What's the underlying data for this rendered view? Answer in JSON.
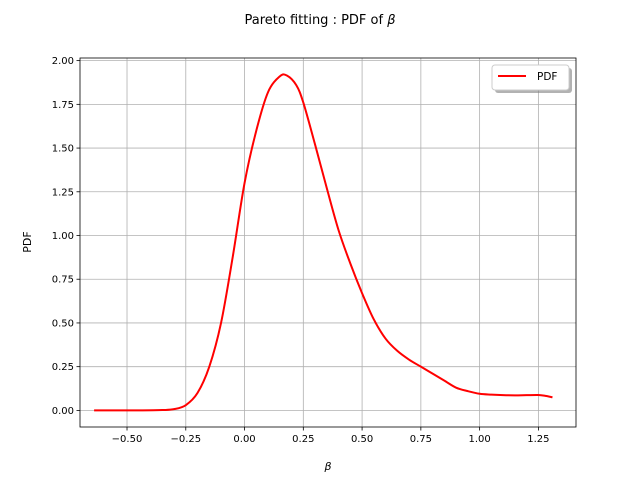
{
  "chart_data": {
    "type": "line",
    "title_prefix": "Pareto fitting : PDF of ",
    "title_symbol": "β",
    "xlabel": "β",
    "ylabel": "PDF",
    "xlim": [
      -0.7,
      1.41
    ],
    "ylim": [
      -0.095,
      2.015
    ],
    "xticks": [
      -0.5,
      -0.25,
      0.0,
      0.25,
      0.5,
      0.75,
      1.0,
      1.25
    ],
    "xtick_labels": [
      "−0.50",
      "−0.25",
      "0.00",
      "0.25",
      "0.50",
      "0.75",
      "1.00",
      "1.25"
    ],
    "yticks": [
      0.0,
      0.25,
      0.5,
      0.75,
      1.0,
      1.25,
      1.5,
      1.75,
      2.0
    ],
    "ytick_labels": [
      "0.00",
      "0.25",
      "0.50",
      "0.75",
      "1.00",
      "1.25",
      "1.50",
      "1.75",
      "2.00"
    ],
    "grid": true,
    "legend_position": "top-right",
    "series": [
      {
        "name": "PDF",
        "color": "#ff0000",
        "x": [
          -0.64,
          -0.55,
          -0.45,
          -0.35,
          -0.3,
          -0.25,
          -0.2,
          -0.15,
          -0.1,
          -0.05,
          0.0,
          0.05,
          0.1,
          0.15,
          0.18,
          0.22,
          0.25,
          0.3,
          0.35,
          0.4,
          0.45,
          0.5,
          0.55,
          0.6,
          0.65,
          0.7,
          0.75,
          0.8,
          0.85,
          0.9,
          0.95,
          1.0,
          1.05,
          1.1,
          1.15,
          1.2,
          1.25,
          1.28,
          1.31
        ],
        "y": [
          0.0,
          0.0,
          0.0,
          0.002,
          0.007,
          0.03,
          0.1,
          0.25,
          0.5,
          0.88,
          1.3,
          1.6,
          1.82,
          1.91,
          1.915,
          1.86,
          1.76,
          1.52,
          1.27,
          1.03,
          0.84,
          0.67,
          0.52,
          0.41,
          0.34,
          0.29,
          0.25,
          0.21,
          0.17,
          0.13,
          0.11,
          0.095,
          0.09,
          0.087,
          0.086,
          0.087,
          0.088,
          0.083,
          0.075
        ]
      }
    ]
  }
}
